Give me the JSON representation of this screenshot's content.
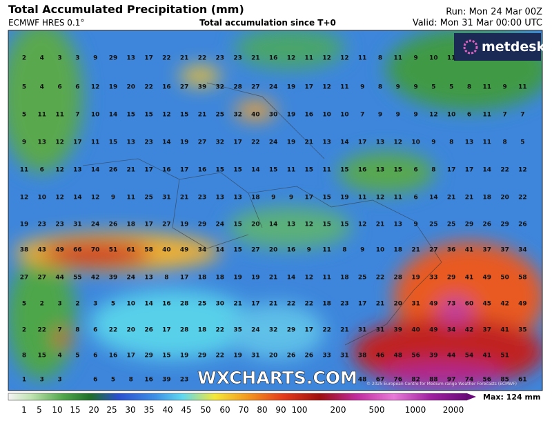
{
  "header": {
    "title": "Total Accumulated Precipitation (mm)",
    "model": "ECMWF HRES 0.1°",
    "subtitle": "Total accumulation since T+0",
    "run": "Run: Mon 24 Mar 00Z",
    "valid": "Valid: Mon 31 Mar 00:00 UTC"
  },
  "logo": "metdesk",
  "watermark": "WXCHARTS.COM",
  "copyright": "© 2025 European Centre for Medium-range Weather Forecasts (ECMWF)",
  "grid": {
    "rows": [
      [
        2,
        4,
        3,
        3,
        9,
        29,
        13,
        17,
        22,
        21,
        22,
        23,
        23,
        21,
        16,
        12,
        11,
        12,
        12,
        11,
        8,
        11,
        9,
        10,
        11,
        null,
        null,
        null,
        null
      ],
      [
        5,
        4,
        6,
        6,
        12,
        19,
        20,
        22,
        16,
        27,
        39,
        32,
        28,
        27,
        24,
        19,
        17,
        12,
        11,
        9,
        8,
        9,
        9,
        5,
        5,
        8,
        11,
        9,
        11
      ],
      [
        5,
        11,
        11,
        7,
        10,
        14,
        15,
        15,
        12,
        15,
        21,
        25,
        32,
        40,
        30,
        19,
        16,
        10,
        10,
        7,
        9,
        9,
        9,
        12,
        10,
        6,
        11,
        7,
        7
      ],
      [
        9,
        13,
        12,
        17,
        11,
        15,
        13,
        23,
        14,
        19,
        27,
        32,
        17,
        22,
        24,
        19,
        21,
        13,
        14,
        17,
        13,
        12,
        10,
        9,
        8,
        13,
        11,
        8,
        5
      ],
      [
        11,
        6,
        12,
        13,
        14,
        26,
        21,
        17,
        16,
        17,
        16,
        15,
        15,
        14,
        15,
        11,
        15,
        11,
        15,
        16,
        13,
        15,
        6,
        8,
        17,
        17,
        14,
        22,
        12
      ],
      [
        12,
        10,
        12,
        14,
        12,
        9,
        11,
        25,
        31,
        21,
        23,
        13,
        13,
        18,
        9,
        9,
        17,
        15,
        19,
        11,
        12,
        11,
        6,
        14,
        21,
        21,
        18,
        20,
        22
      ],
      [
        19,
        23,
        23,
        31,
        24,
        26,
        18,
        17,
        27,
        19,
        29,
        24,
        15,
        20,
        14,
        13,
        12,
        15,
        15,
        12,
        21,
        13,
        9,
        25,
        25,
        29,
        26,
        29,
        26
      ],
      [
        38,
        43,
        49,
        66,
        70,
        51,
        61,
        58,
        40,
        49,
        34,
        14,
        15,
        27,
        20,
        16,
        9,
        11,
        8,
        9,
        10,
        18,
        21,
        27,
        36,
        41,
        37,
        37,
        34
      ],
      [
        27,
        27,
        44,
        55,
        42,
        39,
        24,
        13,
        8,
        17,
        18,
        18,
        19,
        19,
        21,
        14,
        12,
        11,
        18,
        25,
        22,
        28,
        19,
        33,
        29,
        41,
        49,
        50,
        58
      ],
      [
        5,
        2,
        3,
        2,
        3,
        5,
        10,
        14,
        16,
        28,
        25,
        30,
        21,
        17,
        21,
        22,
        22,
        18,
        23,
        17,
        21,
        20,
        31,
        49,
        73,
        60,
        45,
        42,
        49
      ],
      [
        2,
        22,
        7,
        8,
        6,
        22,
        20,
        26,
        17,
        28,
        18,
        22,
        35,
        24,
        32,
        29,
        17,
        22,
        21,
        31,
        31,
        39,
        40,
        49,
        34,
        42,
        37,
        41,
        35
      ],
      [
        8,
        15,
        4,
        5,
        6,
        16,
        17,
        29,
        15,
        19,
        29,
        22,
        19,
        31,
        20,
        26,
        26,
        33,
        31,
        38,
        46,
        48,
        56,
        39,
        44,
        54,
        41,
        51,
        null
      ],
      [
        1,
        3,
        3,
        null,
        6,
        5,
        8,
        16,
        39,
        23,
        null,
        null,
        null,
        null,
        null,
        null,
        null,
        null,
        null,
        48,
        67,
        76,
        82,
        88,
        97,
        74,
        56,
        85,
        61
      ]
    ]
  },
  "legend": {
    "labels": [
      "1",
      "5",
      "10",
      "15",
      "20",
      "25",
      "30",
      "35",
      "40",
      "45",
      "50",
      "60",
      "70",
      "80",
      "90",
      "100",
      "200",
      "500",
      "1000",
      "2000"
    ],
    "max": "Max: 124 mm"
  }
}
